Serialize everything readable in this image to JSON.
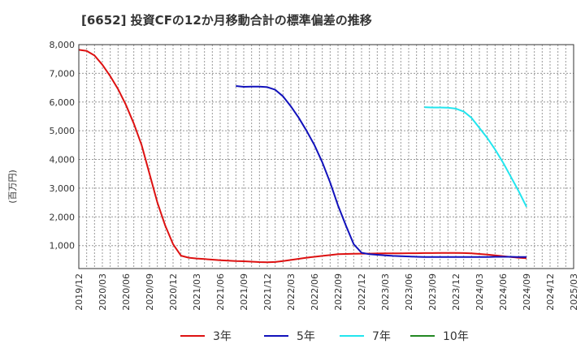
{
  "chart_data": {
    "type": "line",
    "title": "[6652]  投資CFの12か月移動合計の標準偏差の推移",
    "ylabel": "(百万円)",
    "xlabel": "",
    "ylim": [
      200,
      8000
    ],
    "yticks": [
      1000,
      2000,
      3000,
      4000,
      5000,
      6000,
      7000,
      8000
    ],
    "ytick_labels": [
      "1,000",
      "2,000",
      "3,000",
      "4,000",
      "5,000",
      "6,000",
      "7,000",
      "8,000"
    ],
    "x_range": [
      "2019-12",
      "2025-03"
    ],
    "x_ticks": [
      "2019/12",
      "2020/03",
      "2020/06",
      "2020/09",
      "2020/12",
      "2021/03",
      "2021/06",
      "2021/09",
      "2021/12",
      "2022/03",
      "2022/06",
      "2022/09",
      "2022/12",
      "2023/03",
      "2023/06",
      "2023/09",
      "2023/12",
      "2024/03",
      "2024/06",
      "2024/09",
      "2024/12",
      "2025/03"
    ],
    "grid": true,
    "legend_position": "bottom",
    "series": [
      {
        "name": "3年",
        "color": "#dd1111",
        "points": [
          [
            "2019-12",
            7820
          ],
          [
            "2020-01",
            7780
          ],
          [
            "2020-02",
            7620
          ],
          [
            "2020-03",
            7300
          ],
          [
            "2020-04",
            6900
          ],
          [
            "2020-05",
            6450
          ],
          [
            "2020-06",
            5900
          ],
          [
            "2020-07",
            5250
          ],
          [
            "2020-08",
            4500
          ],
          [
            "2020-09",
            3500
          ],
          [
            "2020-10",
            2500
          ],
          [
            "2020-11",
            1700
          ],
          [
            "2020-12",
            1050
          ],
          [
            "2021-01",
            650
          ],
          [
            "2021-02",
            580
          ],
          [
            "2021-03",
            550
          ],
          [
            "2021-04",
            530
          ],
          [
            "2021-05",
            510
          ],
          [
            "2021-06",
            490
          ],
          [
            "2021-07",
            475
          ],
          [
            "2021-08",
            460
          ],
          [
            "2021-09",
            455
          ],
          [
            "2021-10",
            440
          ],
          [
            "2021-11",
            425
          ],
          [
            "2021-12",
            420
          ],
          [
            "2022-01",
            430
          ],
          [
            "2022-02",
            460
          ],
          [
            "2022-03",
            500
          ],
          [
            "2022-04",
            540
          ],
          [
            "2022-05",
            580
          ],
          [
            "2022-06",
            610
          ],
          [
            "2022-07",
            640
          ],
          [
            "2022-08",
            670
          ],
          [
            "2022-09",
            700
          ],
          [
            "2022-10",
            710
          ],
          [
            "2022-11",
            715
          ],
          [
            "2022-12",
            720
          ],
          [
            "2023-01",
            720
          ],
          [
            "2023-02",
            725
          ],
          [
            "2023-03",
            730
          ],
          [
            "2023-04",
            730
          ],
          [
            "2023-05",
            730
          ],
          [
            "2023-06",
            735
          ],
          [
            "2023-07",
            735
          ],
          [
            "2023-08",
            740
          ],
          [
            "2023-09",
            740
          ],
          [
            "2023-10",
            745
          ],
          [
            "2023-11",
            745
          ],
          [
            "2023-12",
            745
          ],
          [
            "2024-01",
            740
          ],
          [
            "2024-02",
            730
          ],
          [
            "2024-03",
            710
          ],
          [
            "2024-04",
            690
          ],
          [
            "2024-05",
            660
          ],
          [
            "2024-06",
            630
          ],
          [
            "2024-07",
            600
          ],
          [
            "2024-08",
            580
          ],
          [
            "2024-09",
            560
          ]
        ]
      },
      {
        "name": "5年",
        "color": "#1111bb",
        "points": [
          [
            "2021-08",
            6560
          ],
          [
            "2021-09",
            6530
          ],
          [
            "2021-10",
            6540
          ],
          [
            "2021-11",
            6540
          ],
          [
            "2021-12",
            6520
          ],
          [
            "2022-01",
            6430
          ],
          [
            "2022-02",
            6200
          ],
          [
            "2022-03",
            5850
          ],
          [
            "2022-04",
            5450
          ],
          [
            "2022-05",
            5000
          ],
          [
            "2022-06",
            4500
          ],
          [
            "2022-07",
            3900
          ],
          [
            "2022-08",
            3200
          ],
          [
            "2022-09",
            2400
          ],
          [
            "2022-10",
            1700
          ],
          [
            "2022-11",
            1050
          ],
          [
            "2022-12",
            750
          ],
          [
            "2023-01",
            700
          ],
          [
            "2023-02",
            680
          ],
          [
            "2023-03",
            660
          ],
          [
            "2023-04",
            640
          ],
          [
            "2023-05",
            630
          ],
          [
            "2023-06",
            620
          ],
          [
            "2023-07",
            610
          ],
          [
            "2023-08",
            600
          ],
          [
            "2023-09",
            600
          ],
          [
            "2023-10",
            600
          ],
          [
            "2023-11",
            600
          ],
          [
            "2023-12",
            600
          ],
          [
            "2024-01",
            600
          ],
          [
            "2024-02",
            600
          ],
          [
            "2024-03",
            600
          ],
          [
            "2024-04",
            605
          ],
          [
            "2024-05",
            610
          ],
          [
            "2024-06",
            610
          ],
          [
            "2024-07",
            610
          ],
          [
            "2024-08",
            600
          ],
          [
            "2024-09",
            600
          ]
        ]
      },
      {
        "name": "7年",
        "color": "#22e5ee",
        "points": [
          [
            "2023-08",
            5820
          ],
          [
            "2023-09",
            5810
          ],
          [
            "2023-10",
            5810
          ],
          [
            "2023-11",
            5800
          ],
          [
            "2023-12",
            5770
          ],
          [
            "2024-01",
            5670
          ],
          [
            "2024-02",
            5450
          ],
          [
            "2024-03",
            5100
          ],
          [
            "2024-04",
            4750
          ],
          [
            "2024-05",
            4350
          ],
          [
            "2024-06",
            3900
          ],
          [
            "2024-07",
            3400
          ],
          [
            "2024-08",
            2900
          ],
          [
            "2024-09",
            2350
          ]
        ]
      },
      {
        "name": "10年",
        "color": "#228822",
        "points": []
      }
    ]
  }
}
